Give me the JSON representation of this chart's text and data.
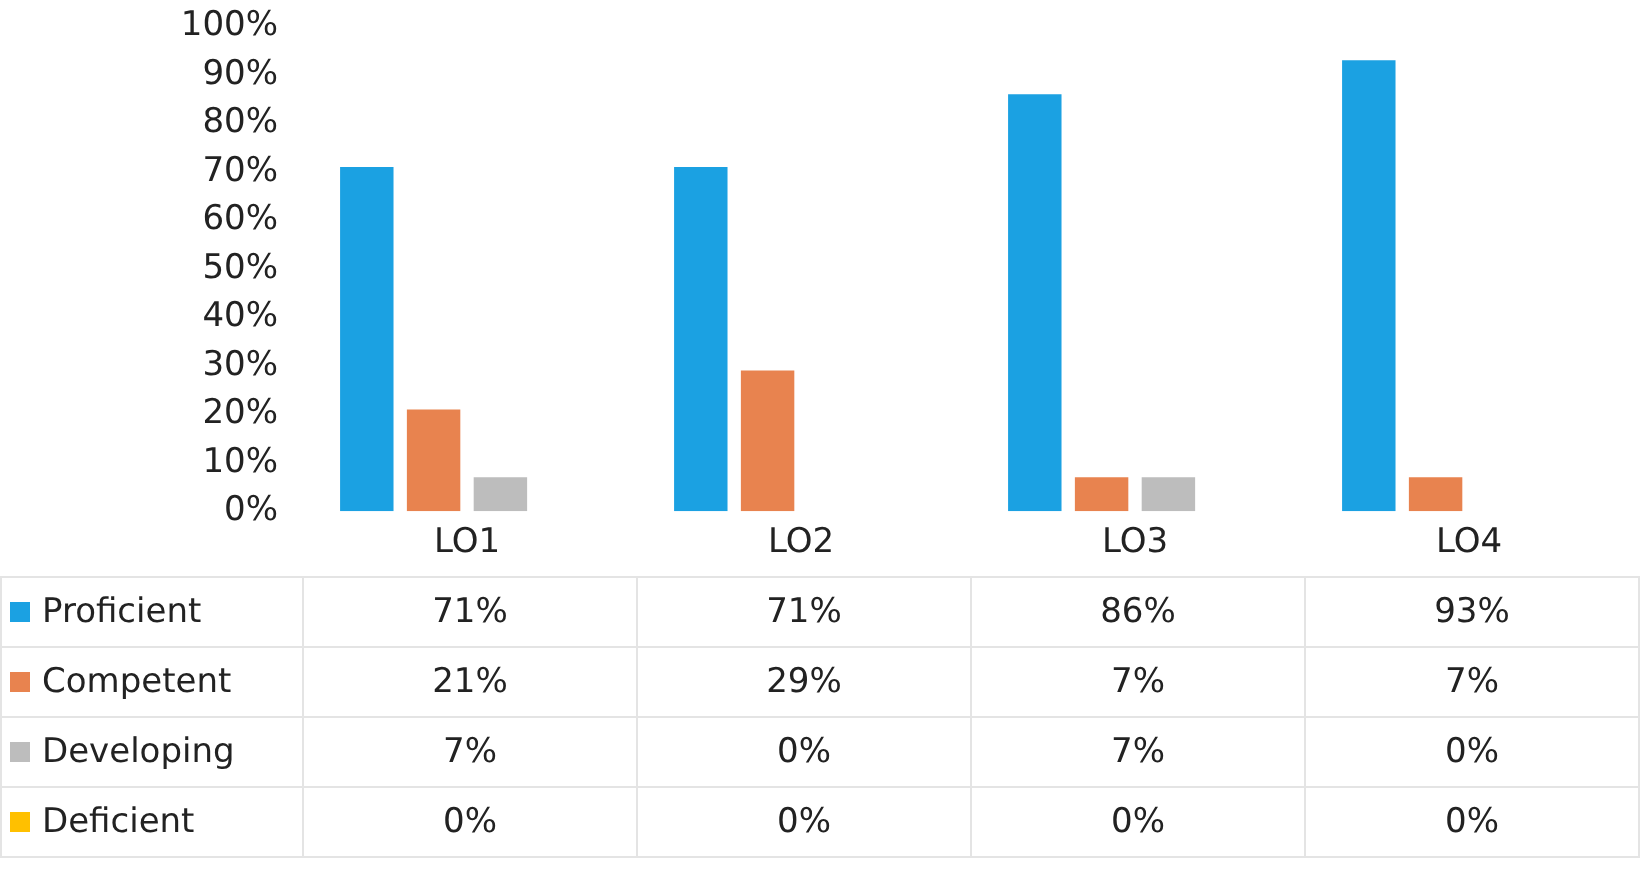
{
  "chart_data": {
    "type": "bar",
    "categories": [
      "LO1",
      "LO2",
      "LO3",
      "LO4"
    ],
    "series": [
      {
        "name": "Proficient",
        "color": "#1ba1e2",
        "values": [
          71,
          71,
          86,
          93
        ],
        "value_labels": [
          "71%",
          "71%",
          "86%",
          "93%"
        ]
      },
      {
        "name": "Competent",
        "color": "#e8834f",
        "values": [
          21,
          29,
          7,
          7
        ],
        "value_labels": [
          "21%",
          "29%",
          "7%",
          "7%"
        ]
      },
      {
        "name": "Developing",
        "color": "#bdbdbd",
        "values": [
          7,
          0,
          7,
          0
        ],
        "value_labels": [
          "7%",
          "0%",
          "7%",
          "0%"
        ]
      },
      {
        "name": "Deficient",
        "color": "#ffc000",
        "values": [
          0,
          0,
          0,
          0
        ],
        "value_labels": [
          "0%",
          "0%",
          "0%",
          "0%"
        ]
      }
    ],
    "ylim": [
      0,
      100
    ],
    "yticks": [
      {
        "value": 0,
        "label": "0%"
      },
      {
        "value": 10,
        "label": "10%"
      },
      {
        "value": 20,
        "label": "20%"
      },
      {
        "value": 30,
        "label": "30%"
      },
      {
        "value": 40,
        "label": "40%"
      },
      {
        "value": 50,
        "label": "50%"
      },
      {
        "value": 60,
        "label": "60%"
      },
      {
        "value": 70,
        "label": "70%"
      },
      {
        "value": 80,
        "label": "80%"
      },
      {
        "value": 90,
        "label": "90%"
      },
      {
        "value": 100,
        "label": "100%"
      }
    ],
    "grid": false,
    "legend": "bottom"
  }
}
